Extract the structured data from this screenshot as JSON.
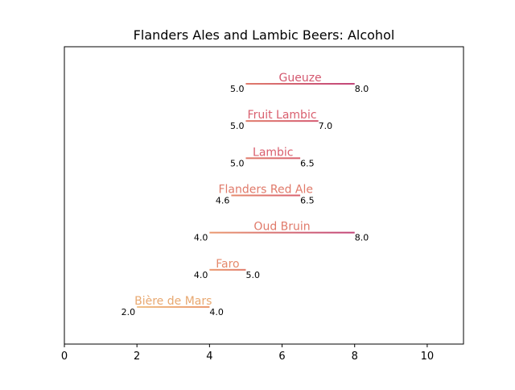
{
  "chart_data": {
    "type": "range",
    "title": "Flanders Ales and Lambic Beers: Alcohol",
    "xlabel": "",
    "ylabel": "",
    "xlim": [
      0,
      11
    ],
    "xticks": [
      0,
      2,
      4,
      6,
      8,
      10
    ],
    "grid": false,
    "series": [
      {
        "name": "Gueuze",
        "low": 5.0,
        "high": 8.0,
        "low_label": "5.0",
        "high_label": "8.0",
        "color_start": "#e07a6a",
        "color_end": "#c2457a"
      },
      {
        "name": "Fruit Lambic",
        "low": 5.0,
        "high": 7.0,
        "low_label": "5.0",
        "high_label": "7.0",
        "color_start": "#e07a6a",
        "color_end": "#d4586f"
      },
      {
        "name": "Lambic",
        "low": 5.0,
        "high": 6.5,
        "low_label": "5.0",
        "high_label": "6.5",
        "color_start": "#e07a6a",
        "color_end": "#d95f6e"
      },
      {
        "name": "Flanders Red Ale",
        "low": 4.6,
        "high": 6.5,
        "low_label": "4.6",
        "high_label": "6.5",
        "color_start": "#e58a6c",
        "color_end": "#d95f6e"
      },
      {
        "name": "Oud Bruin",
        "low": 4.0,
        "high": 8.0,
        "low_label": "4.0",
        "high_label": "8.0",
        "color_start": "#eb9a70",
        "color_end": "#c2457a"
      },
      {
        "name": "Faro",
        "low": 4.0,
        "high": 5.0,
        "low_label": "4.0",
        "high_label": "5.0",
        "color_start": "#eb9a70",
        "color_end": "#e07a6a"
      },
      {
        "name": "Bière de Mars",
        "low": 2.0,
        "high": 4.0,
        "low_label": "2.0",
        "high_label": "4.0",
        "color_start": "#f0c088",
        "color_end": "#eb9a70"
      }
    ],
    "name_color": [
      "#d4586f",
      "#d95f6e",
      "#d95f6e",
      "#e07a6a",
      "#e07a6a",
      "#e58a6c",
      "#e8a870"
    ]
  }
}
